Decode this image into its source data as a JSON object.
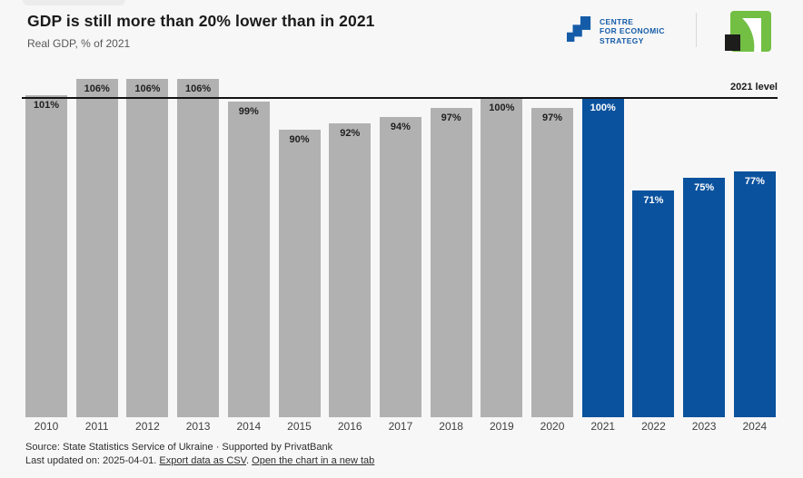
{
  "page": {
    "background": "#F7F7F7"
  },
  "header": {
    "title": "GDP is still more than 20% lower than in 2021",
    "subtitle": "Real GDP, % of 2021"
  },
  "branding": {
    "ces_line1": "CENTRE",
    "ces_line2": "FOR ECONOMIC",
    "ces_line3": "STRATEGY",
    "ces_blue": "#155CA8",
    "partner_green": "#72BF44",
    "partner_black": "#1D1D1B"
  },
  "chart_data": {
    "type": "bar",
    "title": "GDP is still more than 20% lower than in 2021",
    "subtitle": "Real GDP, % of 2021",
    "categories": [
      "2010",
      "2011",
      "2012",
      "2013",
      "2014",
      "2015",
      "2016",
      "2017",
      "2018",
      "2019",
      "2020",
      "2021",
      "2022",
      "2023",
      "2024"
    ],
    "values": [
      101,
      106,
      106,
      106,
      99,
      90,
      92,
      94,
      97,
      100,
      97,
      100,
      71,
      75,
      77
    ],
    "bar_labels": [
      "101%",
      "106%",
      "106%",
      "106%",
      "99%",
      "90%",
      "92%",
      "94%",
      "97%",
      "100%",
      "97%",
      "100%",
      "71%",
      "75%",
      "77%"
    ],
    "series_colors": {
      "past": "#B1B1B1",
      "current": "#0B529E"
    },
    "label_colors": {
      "past": "#1F1F1F",
      "current": "#FFFFFF"
    },
    "blue_from_index": 11,
    "reference_line": {
      "value": 100,
      "label": "2021 level",
      "color": "#141414"
    },
    "xlabel": "",
    "ylabel": "Real GDP, % of 2021",
    "ylim": [
      0,
      108
    ],
    "grid": false,
    "legend": "none",
    "value_labels_position": "inside-top"
  },
  "footer": {
    "source_line": "Source: State Statistics Service of Ukraine · Supported by PrivatBank",
    "updated_prefix": "Last updated on: 2025-04-01. ",
    "export_link": "Export data as CSV",
    "between_links": ". ",
    "open_link": "Open the chart in a new tab"
  }
}
